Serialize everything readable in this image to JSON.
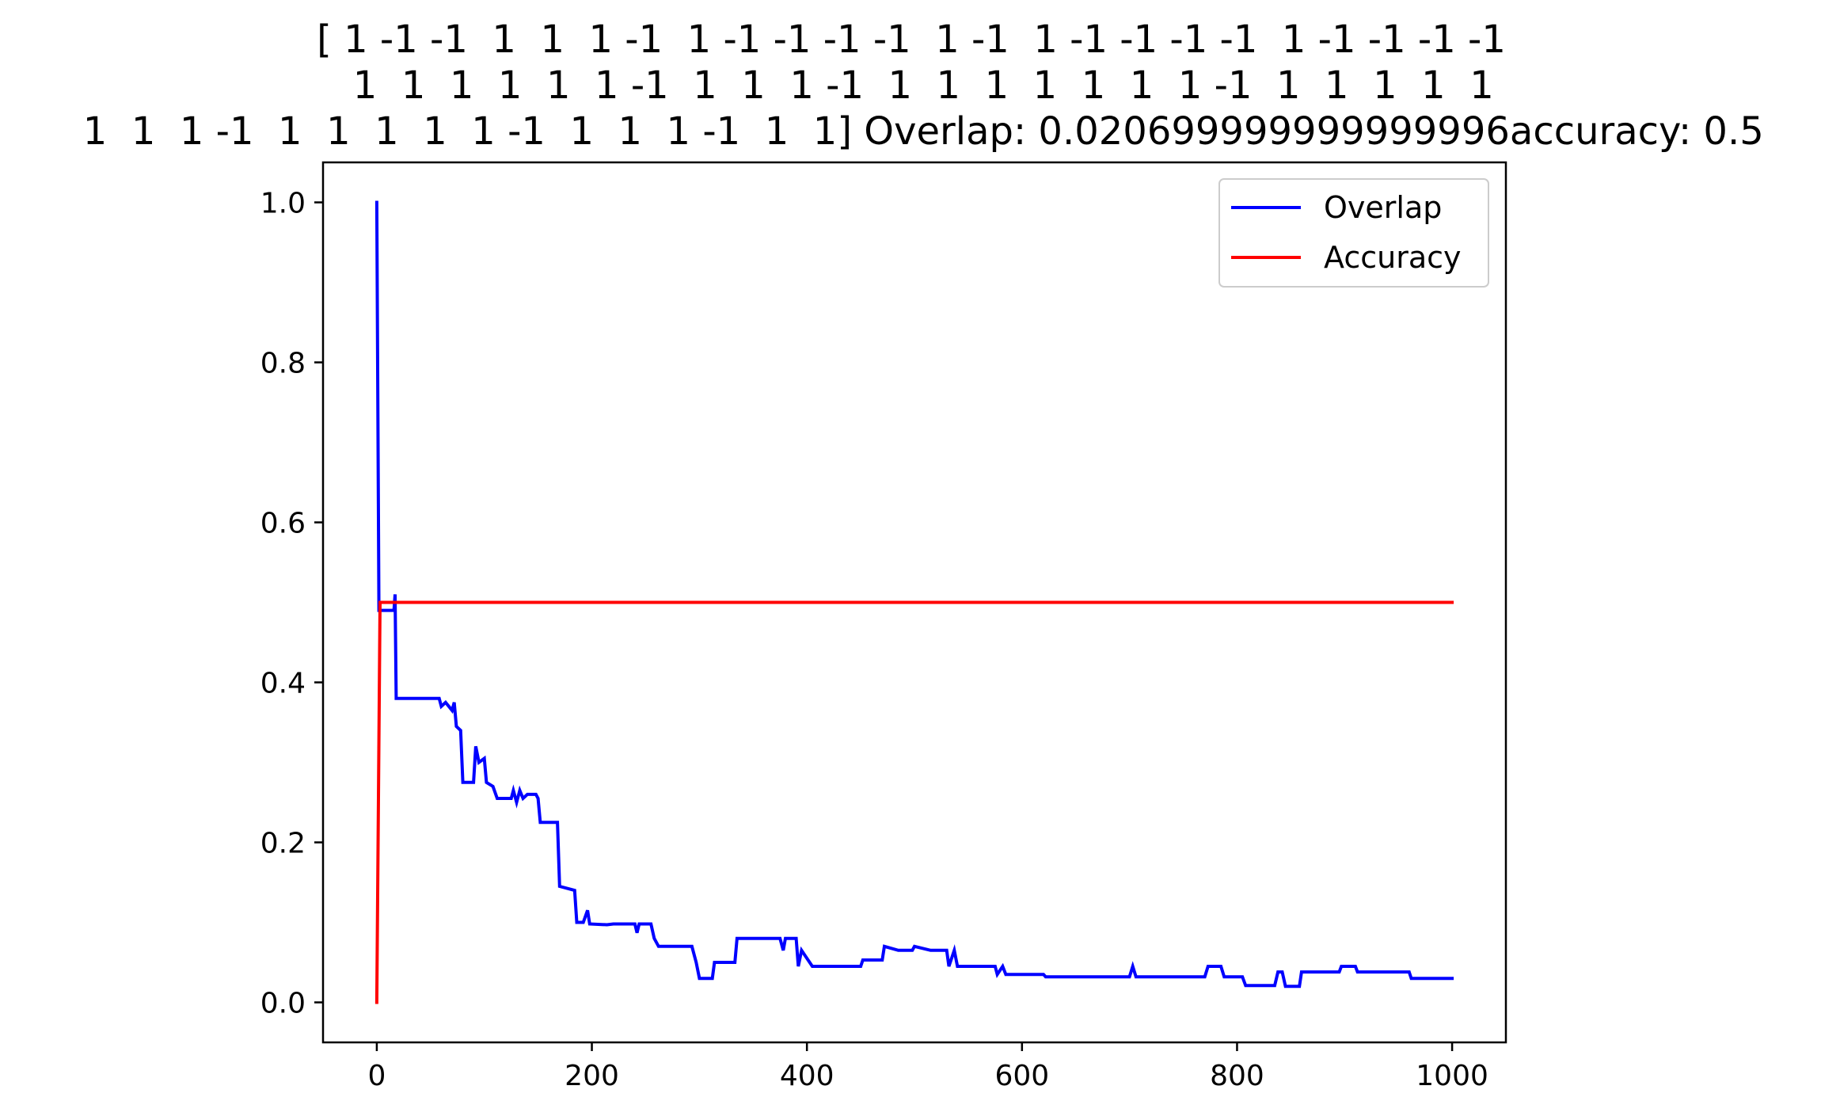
{
  "chart_data": {
    "type": "line",
    "title_lines": [
      "[ 1 -1 -1  1  1  1 -1  1 -1 -1 -1 -1  1 -1  1 -1 -1 -1 -1  1 -1 -1 -1 -1",
      "  1  1  1  1  1  1 -1  1  1  1 -1  1  1  1  1  1  1  1 -1  1  1  1  1  1",
      "  1  1  1 -1  1  1  1  1  1 -1  1  1  1 -1  1  1] Overlap: 0.020699999999999996accuracy: 0.5"
    ],
    "xlabel": "",
    "ylabel": "",
    "xlim": [
      -50,
      1050
    ],
    "ylim": [
      -0.05,
      1.05
    ],
    "xticks": [
      0,
      200,
      400,
      600,
      800,
      1000
    ],
    "yticks": [
      0.0,
      0.2,
      0.4,
      0.6,
      0.8,
      1.0
    ],
    "xtick_labels": [
      "0",
      "200",
      "400",
      "600",
      "800",
      "1000"
    ],
    "ytick_labels": [
      "0.0",
      "0.2",
      "0.4",
      "0.6",
      "0.8",
      "1.0"
    ],
    "grid": false,
    "legend_position": "upper right",
    "series": [
      {
        "name": "Overlap",
        "color": "#0000ff",
        "points": [
          [
            0,
            1.0
          ],
          [
            2,
            0.49
          ],
          [
            16,
            0.49
          ],
          [
            17,
            0.51
          ],
          [
            18,
            0.38
          ],
          [
            58,
            0.38
          ],
          [
            60,
            0.37
          ],
          [
            64,
            0.375
          ],
          [
            67,
            0.37
          ],
          [
            70,
            0.365
          ],
          [
            72,
            0.375
          ],
          [
            74,
            0.345
          ],
          [
            78,
            0.34
          ],
          [
            80,
            0.275
          ],
          [
            90,
            0.275
          ],
          [
            92,
            0.32
          ],
          [
            95,
            0.3
          ],
          [
            100,
            0.305
          ],
          [
            102,
            0.275
          ],
          [
            108,
            0.27
          ],
          [
            112,
            0.255
          ],
          [
            125,
            0.255
          ],
          [
            127,
            0.265
          ],
          [
            130,
            0.25
          ],
          [
            133,
            0.265
          ],
          [
            136,
            0.255
          ],
          [
            140,
            0.26
          ],
          [
            148,
            0.26
          ],
          [
            150,
            0.255
          ],
          [
            152,
            0.225
          ],
          [
            163,
            0.225
          ],
          [
            168,
            0.225
          ],
          [
            170,
            0.145
          ],
          [
            184,
            0.14
          ],
          [
            186,
            0.1
          ],
          [
            192,
            0.1
          ],
          [
            196,
            0.115
          ],
          [
            198,
            0.098
          ],
          [
            214,
            0.097
          ],
          [
            220,
            0.098
          ],
          [
            240,
            0.098
          ],
          [
            242,
            0.087
          ],
          [
            244,
            0.098
          ],
          [
            255,
            0.098
          ],
          [
            258,
            0.08
          ],
          [
            262,
            0.07
          ],
          [
            293,
            0.07
          ],
          [
            297,
            0.05
          ],
          [
            300,
            0.03
          ],
          [
            312,
            0.03
          ],
          [
            314,
            0.05
          ],
          [
            333,
            0.05
          ],
          [
            335,
            0.08
          ],
          [
            375,
            0.08
          ],
          [
            378,
            0.065
          ],
          [
            380,
            0.08
          ],
          [
            390,
            0.08
          ],
          [
            392,
            0.045
          ],
          [
            395,
            0.065
          ],
          [
            405,
            0.045
          ],
          [
            450,
            0.045
          ],
          [
            452,
            0.053
          ],
          [
            470,
            0.053
          ],
          [
            472,
            0.07
          ],
          [
            485,
            0.065
          ],
          [
            498,
            0.065
          ],
          [
            500,
            0.07
          ],
          [
            515,
            0.065
          ],
          [
            530,
            0.065
          ],
          [
            532,
            0.045
          ],
          [
            537,
            0.065
          ],
          [
            540,
            0.045
          ],
          [
            560,
            0.045
          ],
          [
            575,
            0.045
          ],
          [
            577,
            0.035
          ],
          [
            582,
            0.045
          ],
          [
            585,
            0.035
          ],
          [
            620,
            0.035
          ],
          [
            622,
            0.032
          ],
          [
            700,
            0.032
          ],
          [
            703,
            0.045
          ],
          [
            706,
            0.032
          ],
          [
            770,
            0.032
          ],
          [
            773,
            0.045
          ],
          [
            785,
            0.045
          ],
          [
            788,
            0.032
          ],
          [
            805,
            0.032
          ],
          [
            808,
            0.021
          ],
          [
            835,
            0.021
          ],
          [
            838,
            0.038
          ],
          [
            842,
            0.038
          ],
          [
            845,
            0.02
          ],
          [
            858,
            0.02
          ],
          [
            860,
            0.038
          ],
          [
            895,
            0.038
          ],
          [
            897,
            0.045
          ],
          [
            910,
            0.045
          ],
          [
            912,
            0.038
          ],
          [
            960,
            0.038
          ],
          [
            962,
            0.03
          ],
          [
            1000,
            0.03
          ]
        ]
      },
      {
        "name": "Accuracy",
        "color": "#ff0000",
        "points": [
          [
            0,
            0.0
          ],
          [
            3,
            0.5
          ],
          [
            1000,
            0.5
          ]
        ]
      }
    ]
  }
}
